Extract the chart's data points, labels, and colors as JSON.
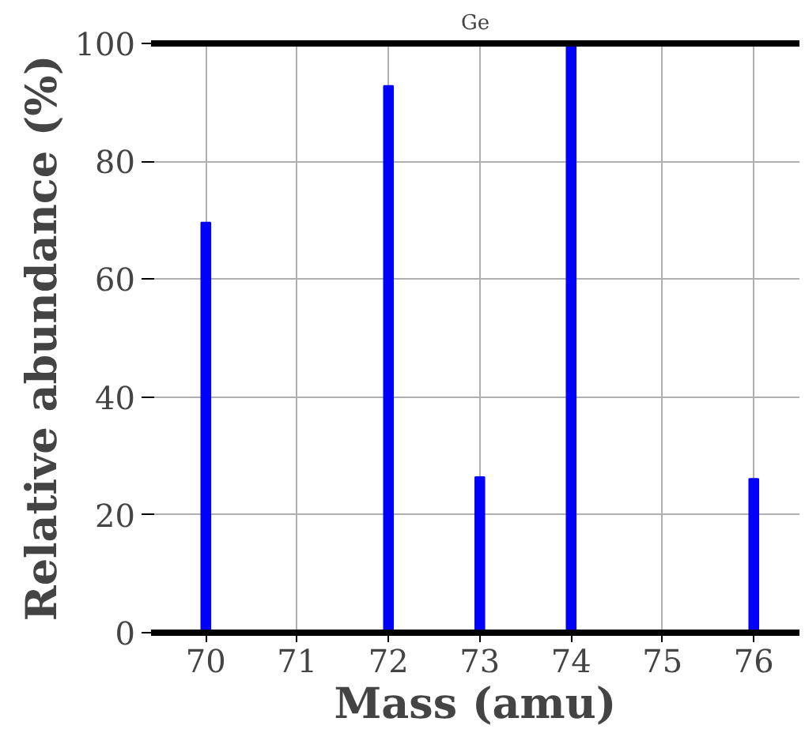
{
  "chart_data": {
    "type": "bar",
    "title": "Ge",
    "xlabel": "Mass (amu)",
    "ylabel": "Relative abundance (%)",
    "x": [
      70,
      72,
      73,
      74,
      76
    ],
    "values": [
      69.6,
      92.8,
      26.4,
      100,
      26.1
    ],
    "color": "#0000ff",
    "xlim": [
      69.4,
      76.5
    ],
    "xticks": [
      70,
      71,
      72,
      73,
      74,
      75,
      76
    ],
    "ylim": [
      0,
      100
    ],
    "yticks": [
      0,
      20,
      40,
      60,
      80,
      100
    ],
    "grid": true
  }
}
